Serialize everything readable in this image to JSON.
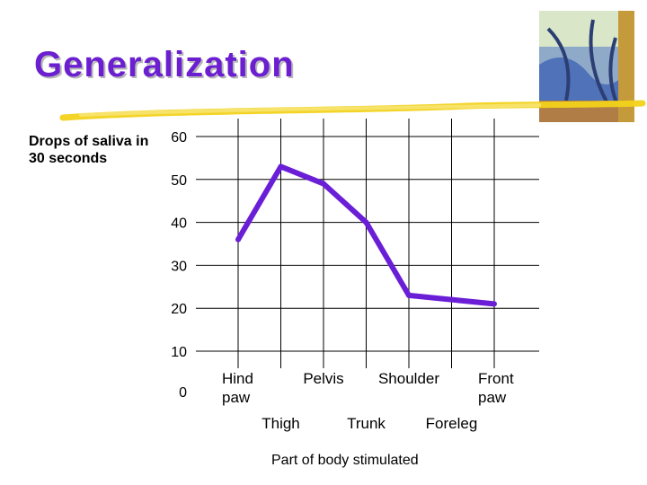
{
  "slide": {
    "title": "Generalization"
  },
  "chart_data": {
    "type": "line",
    "ylabel": "Drops of saliva in 30 seconds",
    "xlabel": "Part of body stimulated",
    "ylim": [
      0,
      60
    ],
    "yticks": [
      0,
      10,
      20,
      30,
      40,
      50,
      60
    ],
    "categories": [
      "Hind paw",
      "Thigh",
      "Pelvis",
      "Trunk",
      "Shoulder",
      "Foreleg",
      "Front paw"
    ],
    "categories_lines": [
      [
        "Hind",
        "paw"
      ],
      [
        "Thigh"
      ],
      [
        "Pelvis"
      ],
      [
        "Trunk"
      ],
      [
        "Shoulder"
      ],
      [
        "Foreleg"
      ],
      [
        "Front",
        "paw"
      ]
    ],
    "series": [
      {
        "values": [
          36,
          53,
          49,
          40,
          23,
          22,
          21
        ],
        "color": "#6a1ed6"
      }
    ],
    "grid": true
  }
}
